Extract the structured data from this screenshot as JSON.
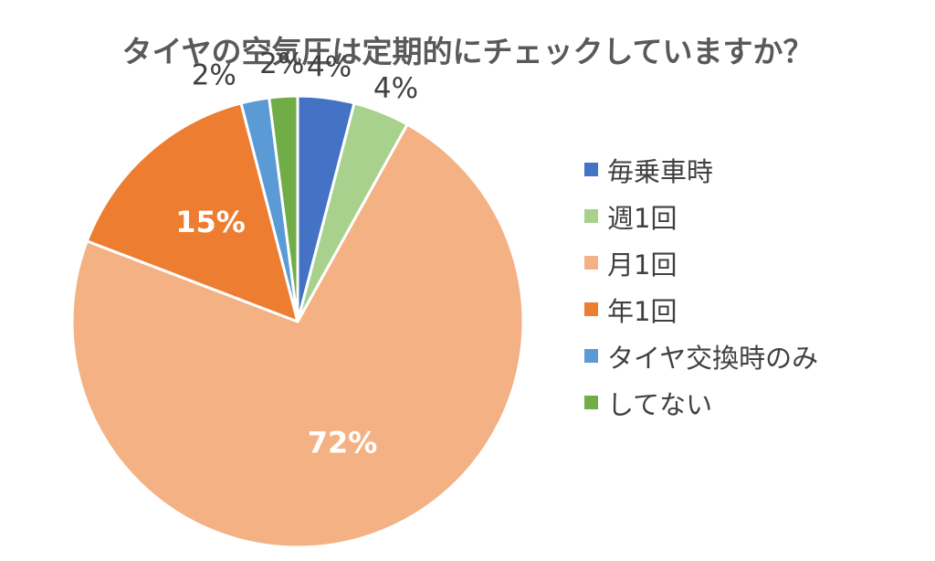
{
  "chart_data": {
    "type": "pie",
    "title": "タイヤの空気圧は定期的にチェックしていますか？",
    "categories": [
      "毎乗車時",
      "週1回",
      "月1回",
      "年1回",
      "タイヤ交換時のみ",
      "してない"
    ],
    "values": [
      4,
      4,
      72,
      15,
      2,
      2
    ],
    "value_labels": [
      "4%",
      "4%",
      "72%",
      "15%",
      "2%",
      "2%"
    ],
    "colors": [
      "#4472C4",
      "#A9D18E",
      "#F4B183",
      "#ED7D31",
      "#5B9BD5",
      "#70AD47"
    ],
    "start": "12 o'clock",
    "direction": "clockwise",
    "legend_position": "right"
  }
}
